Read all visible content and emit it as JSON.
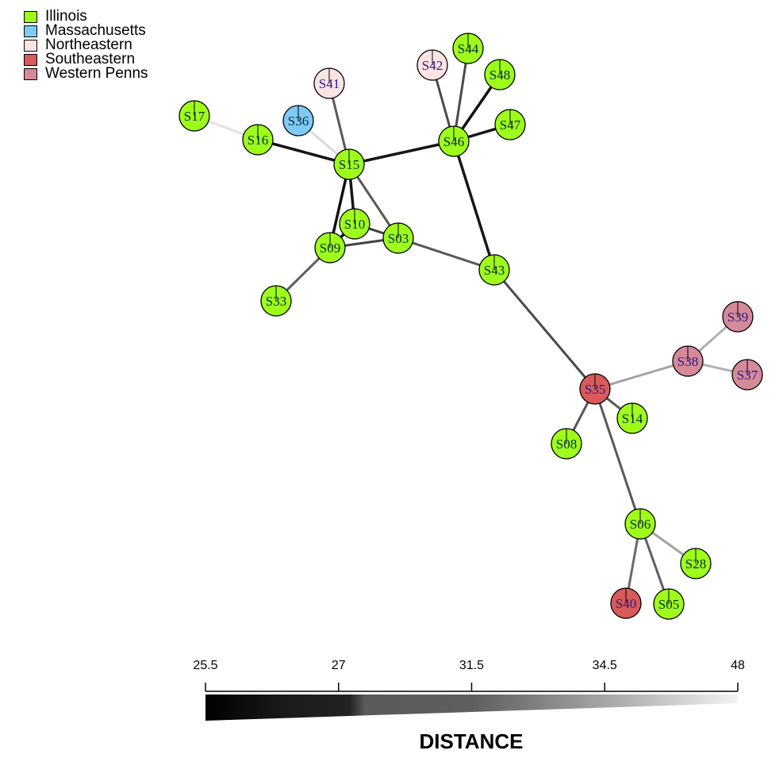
{
  "legend": {
    "items": [
      {
        "label": "Illinois",
        "color": "#9efc1a"
      },
      {
        "label": "Massachusetts",
        "color": "#7fcbf5"
      },
      {
        "label": "Northeastern",
        "color": "#fde4e4"
      },
      {
        "label": "Southeastern",
        "color": "#d85a5a"
      },
      {
        "label": "Western Pennsylvania",
        "color": "#d48a98"
      }
    ]
  },
  "nodes": [
    {
      "id": "S17",
      "group": "Illinois"
    },
    {
      "id": "S16",
      "group": "Illinois"
    },
    {
      "id": "S36",
      "group": "Massachusetts"
    },
    {
      "id": "S41",
      "group": "Northeastern"
    },
    {
      "id": "S15",
      "group": "Illinois"
    },
    {
      "id": "S10",
      "group": "Illinois"
    },
    {
      "id": "S09",
      "group": "Illinois"
    },
    {
      "id": "S03",
      "group": "Illinois"
    },
    {
      "id": "S33",
      "group": "Illinois"
    },
    {
      "id": "S42",
      "group": "Northeastern"
    },
    {
      "id": "S44",
      "group": "Illinois"
    },
    {
      "id": "S48",
      "group": "Illinois"
    },
    {
      "id": "S46",
      "group": "Illinois"
    },
    {
      "id": "S47",
      "group": "Illinois"
    },
    {
      "id": "S43",
      "group": "Illinois"
    },
    {
      "id": "S35",
      "group": "Southeastern"
    },
    {
      "id": "S14",
      "group": "Illinois"
    },
    {
      "id": "S08",
      "group": "Illinois"
    },
    {
      "id": "S38",
      "group": "Western Pennsylvania"
    },
    {
      "id": "S39",
      "group": "Western Pennsylvania"
    },
    {
      "id": "S37",
      "group": "Western Pennsylvania"
    },
    {
      "id": "S06",
      "group": "Illinois"
    },
    {
      "id": "S28",
      "group": "Illinois"
    },
    {
      "id": "S40",
      "group": "Southeastern"
    },
    {
      "id": "S05",
      "group": "Illinois"
    }
  ],
  "edges": [
    {
      "source": "S17",
      "target": "S16",
      "distance": 46
    },
    {
      "source": "S16",
      "target": "S15",
      "distance": 26
    },
    {
      "source": "S36",
      "target": "S15",
      "distance": 45
    },
    {
      "source": "S41",
      "target": "S15",
      "distance": 31
    },
    {
      "source": "S15",
      "target": "S46",
      "distance": 26
    },
    {
      "source": "S15",
      "target": "S09",
      "distance": 25.5
    },
    {
      "source": "S15",
      "target": "S10",
      "distance": 26
    },
    {
      "source": "S15",
      "target": "S03",
      "distance": 31
    },
    {
      "source": "S10",
      "target": "S09",
      "distance": 26
    },
    {
      "source": "S10",
      "target": "S03",
      "distance": 29
    },
    {
      "source": "S09",
      "target": "S03",
      "distance": 29.5
    },
    {
      "source": "S09",
      "target": "S33",
      "distance": 31.5
    },
    {
      "source": "S03",
      "target": "S43",
      "distance": 31
    },
    {
      "source": "S42",
      "target": "S46",
      "distance": 30
    },
    {
      "source": "S44",
      "target": "S46",
      "distance": 30
    },
    {
      "source": "S48",
      "target": "S46",
      "distance": 25.5
    },
    {
      "source": "S47",
      "target": "S46",
      "distance": 26
    },
    {
      "source": "S46",
      "target": "S43",
      "distance": 26
    },
    {
      "source": "S43",
      "target": "S35",
      "distance": 30
    },
    {
      "source": "S35",
      "target": "S38",
      "distance": 36
    },
    {
      "source": "S38",
      "target": "S39",
      "distance": 38
    },
    {
      "source": "S38",
      "target": "S37",
      "distance": 38
    },
    {
      "source": "S35",
      "target": "S14",
      "distance": 31
    },
    {
      "source": "S35",
      "target": "S08",
      "distance": 31
    },
    {
      "source": "S35",
      "target": "S06",
      "distance": 31
    },
    {
      "source": "S06",
      "target": "S28",
      "distance": 36
    },
    {
      "source": "S06",
      "target": "S40",
      "distance": 32
    },
    {
      "source": "S06",
      "target": "S05",
      "distance": 31.5
    }
  ],
  "color_scale": {
    "title": "DISTANCE",
    "ticks": [
      "25.5",
      "27",
      "31.5",
      "34.5",
      "48"
    ]
  }
}
